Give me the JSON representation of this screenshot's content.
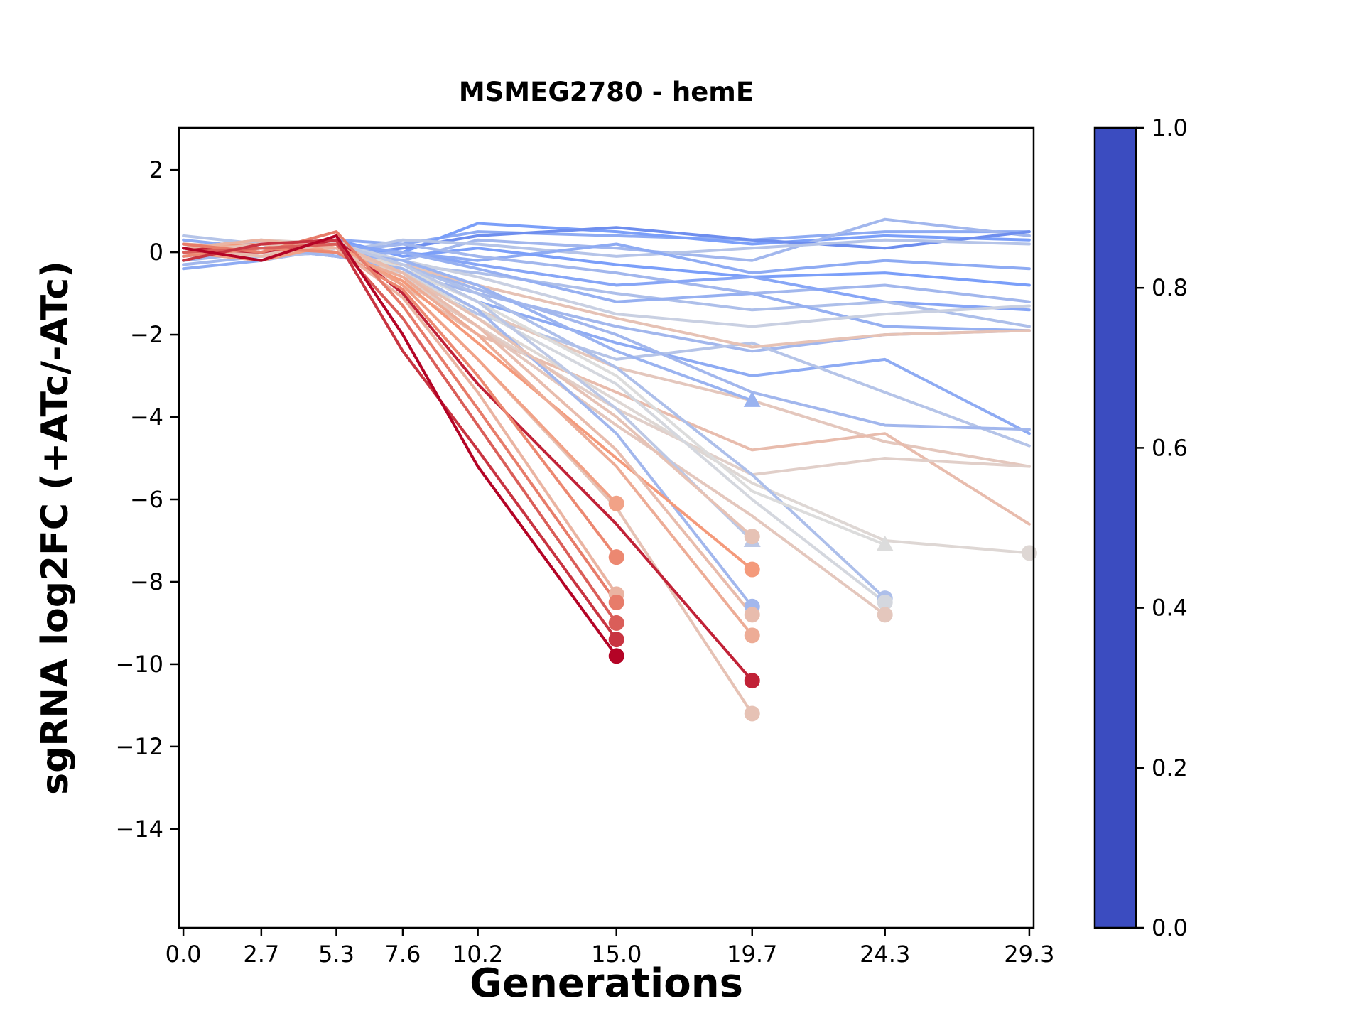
{
  "title": "MSMEG2780 - hemE",
  "chart_data": {
    "type": "line",
    "title": "MSMEG2780 - hemE",
    "xlabel": "Generations",
    "ylabel": "sgRNA log2FC (+ATc/-ATc)",
    "x_points": [
      0.0,
      2.7,
      5.3,
      7.6,
      10.2,
      15.0,
      19.7,
      24.3,
      29.3
    ],
    "x_tick_labels": [
      "0.0",
      "2.7",
      "5.3",
      "7.6",
      "10.2",
      "15.0",
      "19.7",
      "24.3",
      "29.3"
    ],
    "y_ticks": [
      2,
      0,
      -2,
      -4,
      -6,
      -8,
      -10,
      -12,
      -14
    ],
    "y_tick_labels": [
      "2",
      "0",
      "−2",
      "−4",
      "−6",
      "−8",
      "−10",
      "−12",
      "−14"
    ],
    "xlim": [
      -0.15,
      29.45
    ],
    "ylim": [
      -16.4,
      3.02
    ],
    "grid": false,
    "legend": "none",
    "colorbar": {
      "ticks": [
        0.0,
        0.2,
        0.4,
        0.6,
        0.8,
        1.0
      ],
      "tick_labels": [
        "0.0",
        "0.2",
        "0.4",
        "0.6",
        "0.8",
        "1.0"
      ],
      "cmap_name": "coolwarm",
      "cmap_stops": [
        [
          0.0,
          "#3b4cc0"
        ],
        [
          0.25,
          "#7b9ff9"
        ],
        [
          0.5,
          "#dcdcdc"
        ],
        [
          0.75,
          "#f49a7b"
        ],
        [
          1.0,
          "#b40426"
        ]
      ]
    },
    "series": [
      {
        "c": 0.3,
        "marker": null,
        "y": [
          0.3,
          0.1,
          0.3,
          0.2,
          0.5,
          0.4,
          0.3,
          0.5,
          0.5
        ]
      },
      {
        "c": 0.25,
        "marker": null,
        "y": [
          0.1,
          -0.1,
          0.2,
          0.0,
          0.7,
          0.5,
          0.2,
          0.4,
          0.3
        ]
      },
      {
        "c": 0.35,
        "marker": null,
        "y": [
          -0.2,
          0.0,
          0.1,
          -0.2,
          0.3,
          0.1,
          -0.2,
          0.8,
          0.4
        ]
      },
      {
        "c": 0.2,
        "marker": null,
        "y": [
          0.0,
          0.2,
          -0.1,
          0.1,
          0.4,
          0.6,
          0.3,
          0.1,
          0.5
        ]
      },
      {
        "c": 0.4,
        "marker": null,
        "y": [
          0.4,
          0.2,
          0.0,
          0.3,
          0.2,
          -0.1,
          0.1,
          0.3,
          0.2
        ]
      },
      {
        "c": 0.3,
        "marker": null,
        "y": [
          -0.4,
          -0.2,
          0.1,
          0.0,
          -0.2,
          0.2,
          -0.5,
          -0.2,
          -0.4
        ]
      },
      {
        "c": 0.25,
        "marker": null,
        "y": [
          0.2,
          0.0,
          0.3,
          -0.1,
          0.1,
          -0.3,
          -0.6,
          -0.5,
          -0.8
        ]
      },
      {
        "c": 0.35,
        "marker": null,
        "y": [
          0.1,
          0.3,
          0.0,
          0.2,
          -0.1,
          -0.5,
          -1.0,
          -0.8,
          -1.2
        ]
      },
      {
        "c": 0.28,
        "marker": null,
        "y": [
          -0.1,
          0.1,
          0.2,
          0.0,
          -0.3,
          -0.8,
          -0.6,
          -1.2,
          -1.4
        ]
      },
      {
        "c": 0.38,
        "marker": null,
        "y": [
          0.0,
          -0.2,
          0.1,
          -0.3,
          -0.5,
          -1.0,
          -1.4,
          -1.2,
          -1.8
        ]
      },
      {
        "c": 0.32,
        "marker": null,
        "y": [
          0.2,
          0.1,
          -0.1,
          0.0,
          -0.4,
          -1.2,
          -1.0,
          -1.8,
          -1.9
        ]
      },
      {
        "c": 0.45,
        "marker": null,
        "y": [
          0.1,
          0.0,
          0.2,
          -0.2,
          -0.6,
          -1.5,
          -1.8,
          -1.5,
          -1.3
        ]
      },
      {
        "c": 0.35,
        "marker": null,
        "y": [
          -0.3,
          -0.1,
          0.0,
          -0.5,
          -1.0,
          -1.8,
          -2.4,
          -2.0,
          -1.9
        ]
      },
      {
        "c": 0.3,
        "marker": null,
        "y": [
          0.0,
          0.1,
          -0.1,
          -0.4,
          -1.2,
          -2.2,
          -3.0,
          -2.6,
          -4.4
        ]
      },
      {
        "c": 0.4,
        "marker": null,
        "y": [
          0.1,
          -0.1,
          0.0,
          -0.6,
          -1.5,
          -2.6,
          -2.2,
          -3.4,
          -4.7
        ]
      },
      {
        "c": 0.35,
        "marker": null,
        "y": [
          0.2,
          0.0,
          0.1,
          -0.3,
          -0.9,
          -2.0,
          -3.4,
          -4.2,
          -4.3
        ]
      },
      {
        "c": 0.6,
        "marker": null,
        "y": [
          0.1,
          0.2,
          0.0,
          -0.3,
          -0.8,
          -1.6,
          -2.3,
          -2.0,
          -1.9
        ]
      },
      {
        "c": 0.58,
        "marker": null,
        "y": [
          0.0,
          0.1,
          0.3,
          -0.5,
          -1.4,
          -2.8,
          -3.6,
          -4.6,
          -5.2
        ]
      },
      {
        "c": 0.62,
        "marker": null,
        "y": [
          0.2,
          0.0,
          0.1,
          -0.8,
          -2.0,
          -3.4,
          -4.8,
          -4.4,
          -6.6
        ]
      },
      {
        "c": 0.55,
        "marker": null,
        "y": [
          0.1,
          0.3,
          0.2,
          -0.6,
          -1.8,
          -3.8,
          -5.4,
          -5.0,
          -5.2
        ]
      },
      {
        "c": 0.52,
        "marker": "o",
        "y": [
          0.0,
          0.1,
          0.2,
          -0.4,
          -1.6,
          -3.6,
          -5.6,
          -7.0,
          -7.3
        ]
      },
      {
        "c": 0.38,
        "marker": "o",
        "y": [
          0.1,
          0.0,
          0.2,
          -0.3,
          -1.0,
          -2.8,
          -5.4,
          -8.4
        ]
      },
      {
        "c": 0.48,
        "marker": "o",
        "y": [
          0.0,
          0.2,
          0.1,
          -0.5,
          -1.4,
          -3.2,
          -6.0,
          -8.5
        ]
      },
      {
        "c": 0.58,
        "marker": "o",
        "y": [
          0.2,
          0.1,
          0.0,
          -0.7,
          -1.8,
          -4.2,
          -6.4,
          -8.8
        ]
      },
      {
        "c": 0.5,
        "marker": "^",
        "y": [
          0.0,
          -0.1,
          0.1,
          -0.4,
          -1.2,
          -3.0,
          -5.8,
          -7.1
        ]
      },
      {
        "c": 0.33,
        "marker": "^",
        "y": [
          0.0,
          0.1,
          0.0,
          -0.2,
          -0.8,
          -2.4,
          -3.6
        ]
      },
      {
        "c": 0.42,
        "marker": "^",
        "y": [
          0.1,
          0.0,
          0.2,
          -0.3,
          -1.2,
          -3.8,
          -7.0
        ]
      },
      {
        "c": 0.35,
        "marker": "o",
        "y": [
          0.0,
          0.1,
          -0.1,
          -0.4,
          -1.4,
          -4.4,
          -8.6
        ]
      },
      {
        "c": 0.6,
        "marker": "o",
        "y": [
          0.0,
          0.0,
          0.1,
          -0.5,
          -1.6,
          -4.0,
          -6.9
        ]
      },
      {
        "c": 0.75,
        "marker": "o",
        "y": [
          0.1,
          0.2,
          0.0,
          -0.7,
          -2.2,
          -5.0,
          -7.7
        ]
      },
      {
        "c": 0.62,
        "marker": "o",
        "y": [
          0.1,
          -0.1,
          0.2,
          -0.5,
          -1.8,
          -4.8,
          -8.8
        ]
      },
      {
        "c": 0.68,
        "marker": "o",
        "y": [
          0.2,
          0.1,
          0.0,
          -0.6,
          -2.0,
          -5.2,
          -9.3
        ]
      },
      {
        "c": 0.6,
        "marker": "o",
        "y": [
          0.0,
          0.2,
          0.1,
          -0.8,
          -2.6,
          -6.2,
          -11.2
        ]
      },
      {
        "c": 0.95,
        "marker": "o",
        "y": [
          0.1,
          0.0,
          0.3,
          -1.0,
          -3.2,
          -6.6,
          -10.4
        ]
      },
      {
        "c": 0.72,
        "marker": "o",
        "y": [
          0.0,
          -0.2,
          0.2,
          -0.8,
          -2.6,
          -6.1
        ]
      },
      {
        "c": 0.78,
        "marker": "o",
        "y": [
          -0.1,
          0.1,
          0.0,
          -0.9,
          -3.0,
          -7.4
        ]
      },
      {
        "c": 0.65,
        "marker": "o",
        "y": [
          0.1,
          0.3,
          0.1,
          -1.1,
          -3.4,
          -8.3
        ]
      },
      {
        "c": 0.8,
        "marker": "o",
        "y": [
          0.2,
          0.0,
          0.5,
          -1.3,
          -3.8,
          -8.5
        ]
      },
      {
        "c": 0.85,
        "marker": "o",
        "y": [
          0.0,
          0.1,
          0.2,
          -1.6,
          -4.2,
          -9.0
        ]
      },
      {
        "c": 0.92,
        "marker": "o",
        "y": [
          -0.2,
          0.2,
          0.3,
          -2.4,
          -4.8,
          -9.4
        ]
      },
      {
        "c": 1.0,
        "marker": "o",
        "y": [
          0.1,
          -0.2,
          0.4,
          -2.0,
          -5.2,
          -9.8
        ]
      }
    ]
  }
}
